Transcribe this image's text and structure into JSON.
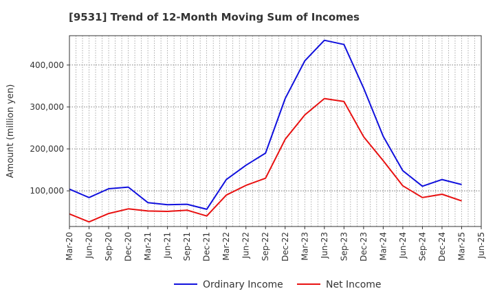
{
  "chart_data": {
    "type": "line",
    "title": "[9531]  Trend of 12-Month Moving Sum of Incomes",
    "xlabel": "",
    "ylabel": "Amount (million yen)",
    "ylim": [
      15000,
      470000
    ],
    "yticks": [
      100000,
      200000,
      300000,
      400000
    ],
    "ytick_labels": [
      "100,000",
      "200,000",
      "300,000",
      "400,000"
    ],
    "categories": [
      "Mar-20",
      "Jun-20",
      "Sep-20",
      "Dec-20",
      "Mar-21",
      "Jun-21",
      "Sep-21",
      "Dec-21",
      "Mar-22",
      "Jun-22",
      "Sep-22",
      "Dec-22",
      "Mar-23",
      "Jun-23",
      "Sep-23",
      "Dec-23",
      "Mar-24",
      "Jun-24",
      "Sep-24",
      "Dec-24",
      "Mar-25",
      "Jun-25"
    ],
    "grid": true,
    "legend": "bottom",
    "series": [
      {
        "name": "Ordinary Income",
        "color": "#1010dd",
        "values": [
          104000,
          84000,
          105000,
          109000,
          72000,
          67000,
          68000,
          56000,
          127000,
          161000,
          190000,
          320000,
          410000,
          459000,
          449000,
          345000,
          230000,
          148000,
          111000,
          127000,
          115000,
          null
        ]
      },
      {
        "name": "Net Income",
        "color": "#e81010",
        "values": [
          45000,
          26000,
          46000,
          57000,
          52000,
          51000,
          54000,
          40000,
          90000,
          113000,
          130000,
          223000,
          281000,
          320000,
          313000,
          229000,
          172000,
          112000,
          84000,
          92000,
          76000,
          null
        ]
      }
    ]
  }
}
